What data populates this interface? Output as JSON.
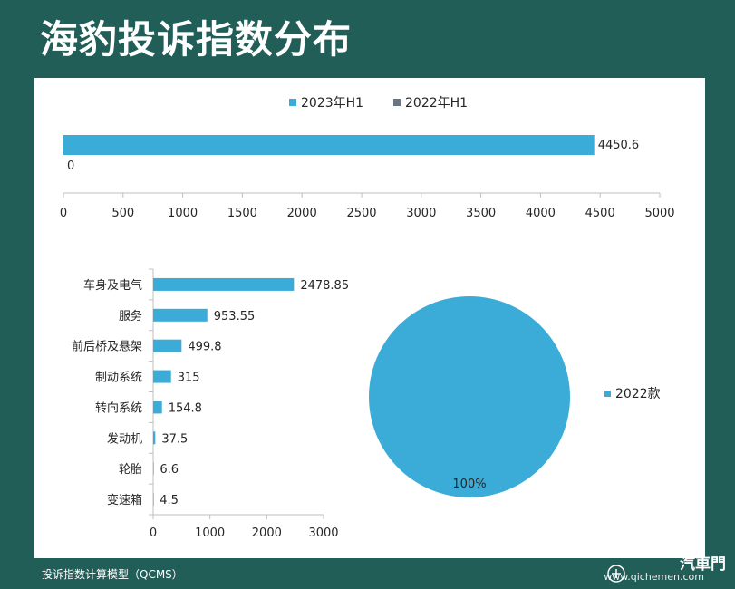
{
  "page": {
    "title": "海豹投诉指数分布",
    "footer": "投诉指数计算模型（QCMS）",
    "watermark_brand": "汽車門",
    "watermark_site": "www.qichemen.com"
  },
  "colors": {
    "background": "#215e58",
    "panel": "#ffffff",
    "bar": "#3bacd8",
    "bar_2022": "#6b7680",
    "axis": "#bfbfbf",
    "text": "#262626"
  },
  "chart_data": [
    {
      "type": "bar",
      "orientation": "horizontal",
      "series": [
        {
          "name": "2023年H1",
          "values": [
            4450.6
          ],
          "labels": [
            "4450.6"
          ]
        },
        {
          "name": "2022年H1",
          "values": [
            0
          ],
          "labels": [
            "0"
          ]
        }
      ],
      "xlim": [
        0,
        5000
      ],
      "xticks": [
        "0",
        "500",
        "1000",
        "1500",
        "2000",
        "2500",
        "3000",
        "3500",
        "4000",
        "4500",
        "5000"
      ],
      "legend": "top-center",
      "grid": false
    },
    {
      "type": "bar",
      "orientation": "horizontal",
      "categories": [
        "车身及电气",
        "服务",
        "前后桥及悬架",
        "制动系统",
        "转向系统",
        "发动机",
        "轮胎",
        "变速箱"
      ],
      "values": [
        2478.85,
        953.55,
        499.8,
        315,
        154.8,
        37.5,
        6.6,
        4.5
      ],
      "labels": [
        "2478.85",
        "953.55",
        "499.8",
        "315",
        "154.8",
        "37.5",
        "6.6",
        "4.5"
      ],
      "xlim": [
        0,
        3000
      ],
      "xticks": [
        "0",
        "1000",
        "2000",
        "3000"
      ],
      "grid": false
    },
    {
      "type": "pie",
      "slices": [
        {
          "label": "2022款",
          "value": 100,
          "display": "100%"
        }
      ],
      "legend": "right"
    }
  ]
}
